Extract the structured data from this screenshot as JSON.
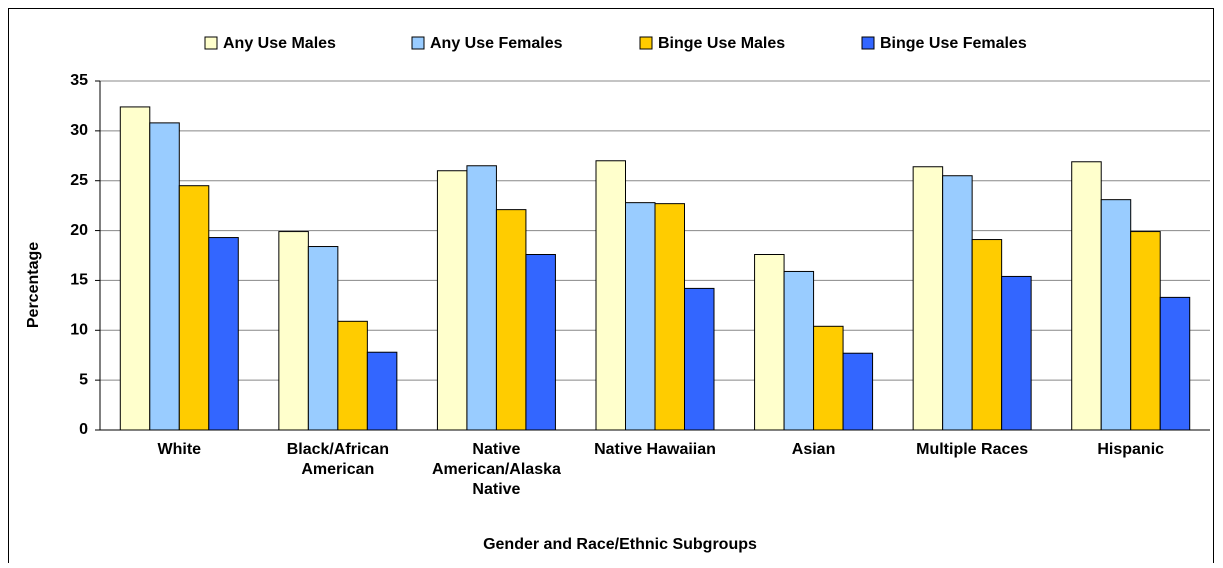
{
  "chart_data": {
    "type": "bar",
    "xlabel": "Gender and Race/Ethnic Subgroups",
    "ylabel": "Percentage",
    "categories": [
      "White",
      "Black/African American",
      "Native American/Alaska Native",
      "Native Hawaiian",
      "Asian",
      "Multiple Races",
      "Hispanic"
    ],
    "series": [
      {
        "name": "Any Use Males",
        "color": "#ffffcc",
        "values": [
          32.4,
          19.9,
          26.0,
          27.0,
          17.6,
          26.4,
          26.9
        ]
      },
      {
        "name": "Any Use Females",
        "color": "#99ccff",
        "values": [
          30.8,
          18.4,
          26.5,
          22.8,
          15.9,
          25.5,
          23.1
        ]
      },
      {
        "name": "Binge Use Males",
        "color": "#ffcc00",
        "values": [
          24.5,
          10.9,
          22.1,
          22.7,
          10.4,
          19.1,
          19.9
        ]
      },
      {
        "name": "Binge Use Females",
        "color": "#3366ff",
        "values": [
          19.3,
          7.8,
          17.6,
          14.2,
          7.7,
          15.4,
          13.3
        ]
      }
    ],
    "ylim": [
      0,
      35
    ],
    "yticks": [
      0,
      5,
      10,
      15,
      20,
      25,
      30,
      35
    ],
    "grid": true,
    "legend": "top"
  }
}
